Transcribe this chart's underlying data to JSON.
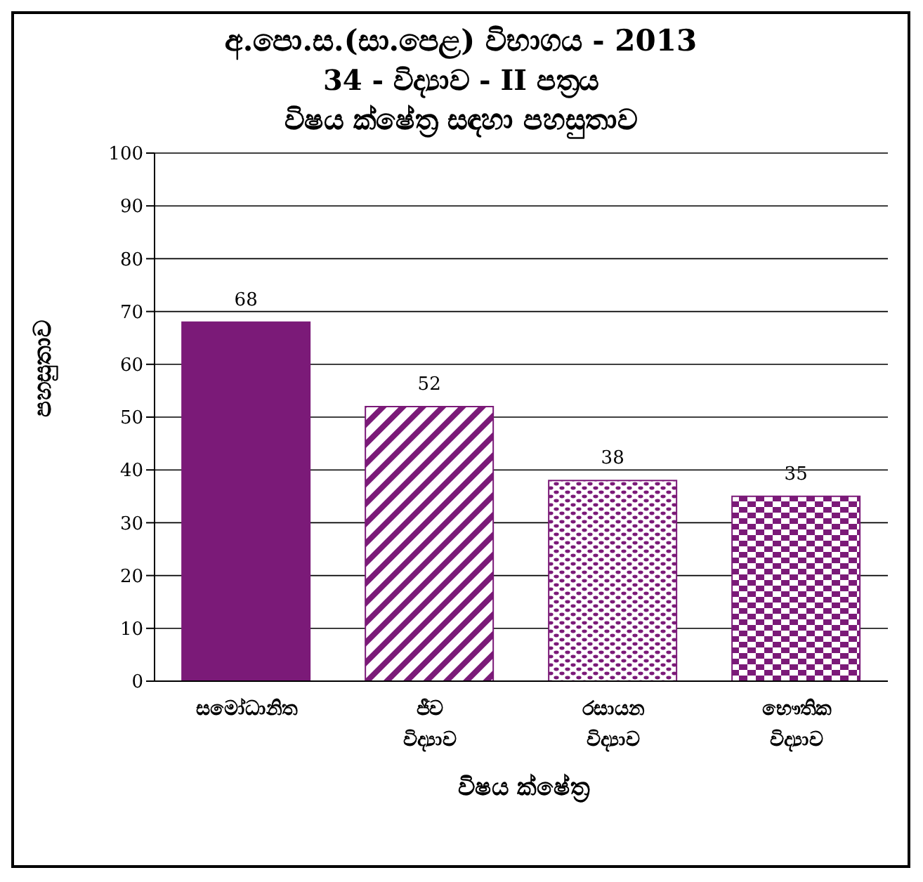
{
  "chart_data": {
    "type": "bar",
    "title": "අ.පො.ස.(සා.පෙළ) විභාගය - 2013",
    "subtitle": "34  -  විද්‍යාව  -  II පත්‍රය\nවිෂය ක්ෂේත්‍ර සඳහා පහසුතාව",
    "xlabel": "විෂය ක්ෂේත්‍ර",
    "ylabel": "පහසුතාව",
    "categories": [
      "සමෝධානිත",
      "ජීව විද්‍යාව",
      "රසායන විද්‍යාව",
      "භෞතික විද්‍යාව"
    ],
    "values": [
      68,
      52,
      38,
      35
    ],
    "color": "#7b1a78",
    "ylim": [
      0,
      100
    ],
    "yticks": [
      0,
      10,
      20,
      30,
      40,
      50,
      60,
      70,
      80,
      90,
      100
    ],
    "grid": "y",
    "data_labels": true
  }
}
